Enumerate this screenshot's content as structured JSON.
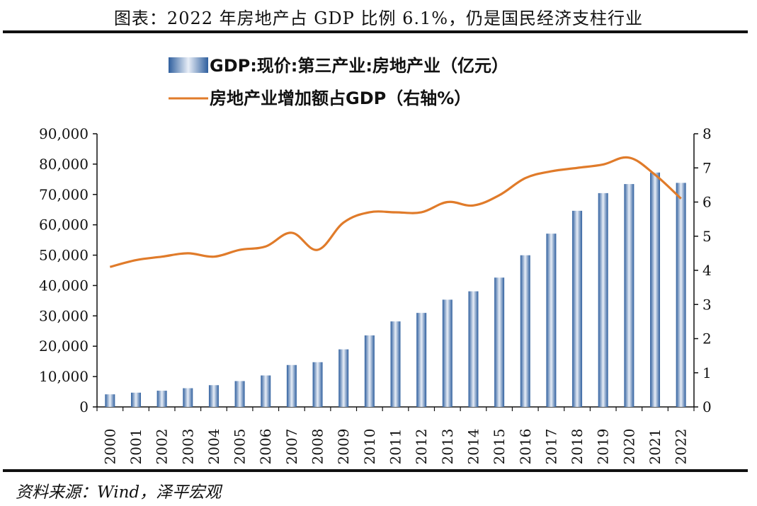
{
  "header": {
    "title": "图表：2022 年房地产占 GDP 比例 6.1%，仍是国民经济支柱行业"
  },
  "footer": {
    "source": "资料来源：Wind，泽平宏观"
  },
  "colors": {
    "bar_dark": "#2f5f9e",
    "bar_light": "#e8eef7",
    "line": "#e07b2a",
    "axis": "#111111"
  },
  "chart_data": {
    "type": "bar",
    "title": "",
    "categories": [
      "2000",
      "2001",
      "2002",
      "2003",
      "2004",
      "2005",
      "2006",
      "2007",
      "2008",
      "2009",
      "2010",
      "2011",
      "2012",
      "2013",
      "2014",
      "2015",
      "2016",
      "2017",
      "2018",
      "2019",
      "2020",
      "2021",
      "2022"
    ],
    "series": [
      {
        "name": "GDP:现价:第三产业:房地产业（亿元）",
        "type": "bar",
        "axis": "left",
        "values": [
          4150,
          4700,
          5350,
          6170,
          7170,
          8520,
          10370,
          13810,
          14740,
          18970,
          23570,
          28170,
          30980,
          35340,
          38090,
          42610,
          49970,
          57090,
          64620,
          70440,
          73430,
          77220,
          73820
        ]
      },
      {
        "name": "房地产业增加额占GDP（右轴%）",
        "type": "line",
        "axis": "right",
        "values": [
          4.1,
          4.3,
          4.4,
          4.5,
          4.4,
          4.6,
          4.7,
          5.1,
          4.6,
          5.4,
          5.7,
          5.7,
          5.7,
          6.0,
          5.9,
          6.2,
          6.7,
          6.9,
          7.0,
          7.1,
          7.3,
          6.8,
          6.1
        ]
      }
    ],
    "y_left": {
      "ylim": [
        0,
        90000
      ],
      "ticks": [
        "0",
        "10,000",
        "20,000",
        "30,000",
        "40,000",
        "50,000",
        "60,000",
        "70,000",
        "80,000",
        "90,000"
      ]
    },
    "y_right": {
      "ylim": [
        0,
        8
      ],
      "ticks": [
        "0",
        "1",
        "2",
        "3",
        "4",
        "5",
        "6",
        "7",
        "8"
      ]
    },
    "legend": "top-center",
    "grid": false
  }
}
